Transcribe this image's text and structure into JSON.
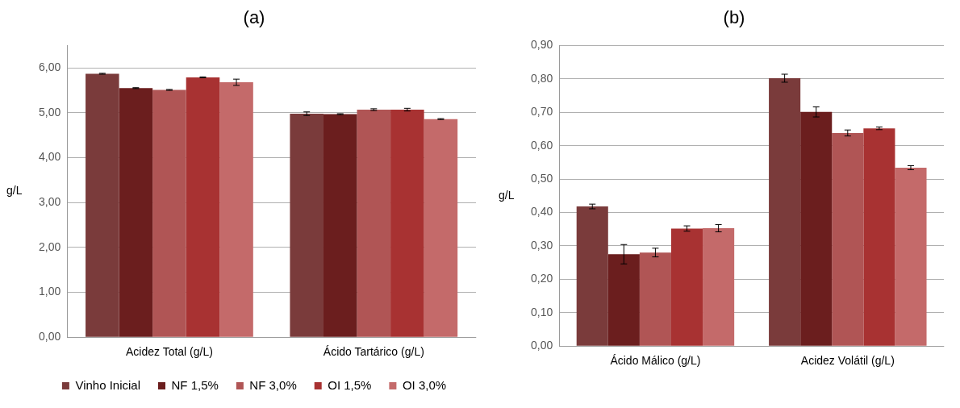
{
  "chart_data": [
    {
      "type": "bar",
      "title": "(a)",
      "ylabel": "g/L",
      "categories": [
        "Acidez Total (g/L)",
        "Ácido Tartárico (g/L)"
      ],
      "ylim": [
        0,
        6.5
      ],
      "yticks": [
        {
          "value": 0,
          "label": "0,00"
        },
        {
          "value": 1,
          "label": "1,00"
        },
        {
          "value": 2,
          "label": "2,00"
        },
        {
          "value": 3,
          "label": "3,00"
        },
        {
          "value": 4,
          "label": "4,00"
        },
        {
          "value": 5,
          "label": "5,00"
        },
        {
          "value": 6,
          "label": "6,00"
        }
      ],
      "grid": "y",
      "legend": "bottom",
      "series": [
        {
          "name": "Vinho Inicial",
          "color": "#7a3b3b",
          "values": [
            5.87,
            4.98
          ],
          "errors": [
            0.01,
            0.04
          ]
        },
        {
          "name": "NF 1,5%",
          "color": "#6b1e1e",
          "values": [
            5.55,
            4.97
          ],
          "errors": [
            0.01,
            0.01
          ]
        },
        {
          "name": "NF 3,0%",
          "color": "#b05555",
          "values": [
            5.51,
            5.07
          ],
          "errors": [
            0.01,
            0.02
          ]
        },
        {
          "name": "OI 1,5%",
          "color": "#a83232",
          "values": [
            5.79,
            5.07
          ],
          "errors": [
            0.01,
            0.03
          ]
        },
        {
          "name": "OI 3,0%",
          "color": "#c46a6a",
          "values": [
            5.68,
            4.86
          ],
          "errors": [
            0.07,
            0.01
          ]
        }
      ]
    },
    {
      "type": "bar",
      "title": "(b)",
      "ylabel": "g/L",
      "categories": [
        "Ácido Málico (g/L)",
        "Acidez Volátil (g/L)"
      ],
      "ylim": [
        0,
        0.9
      ],
      "yticks": [
        {
          "value": 0,
          "label": "0,00"
        },
        {
          "value": 0.1,
          "label": "0,10"
        },
        {
          "value": 0.2,
          "label": "0,20"
        },
        {
          "value": 0.3,
          "label": "0,30"
        },
        {
          "value": 0.4,
          "label": "0,40"
        },
        {
          "value": 0.5,
          "label": "0,50"
        },
        {
          "value": 0.6,
          "label": "0,60"
        },
        {
          "value": 0.7,
          "label": "0,70"
        },
        {
          "value": 0.8,
          "label": "0,80"
        },
        {
          "value": 0.9,
          "label": "0,90"
        }
      ],
      "grid": "y",
      "series": [
        {
          "color": "#7a3b3b",
          "values": [
            0.418,
            0.802
          ],
          "errors": [
            0.007,
            0.012
          ]
        },
        {
          "color": "#6b1e1e",
          "values": [
            0.275,
            0.701
          ],
          "errors": [
            0.029,
            0.015
          ]
        },
        {
          "color": "#b05555",
          "values": [
            0.28,
            0.638
          ],
          "errors": [
            0.013,
            0.009
          ]
        },
        {
          "color": "#a83232",
          "values": [
            0.352,
            0.652
          ],
          "errors": [
            0.008,
            0.004
          ]
        },
        {
          "color": "#c46a6a",
          "values": [
            0.353,
            0.534
          ],
          "errors": [
            0.011,
            0.006
          ]
        }
      ]
    }
  ]
}
